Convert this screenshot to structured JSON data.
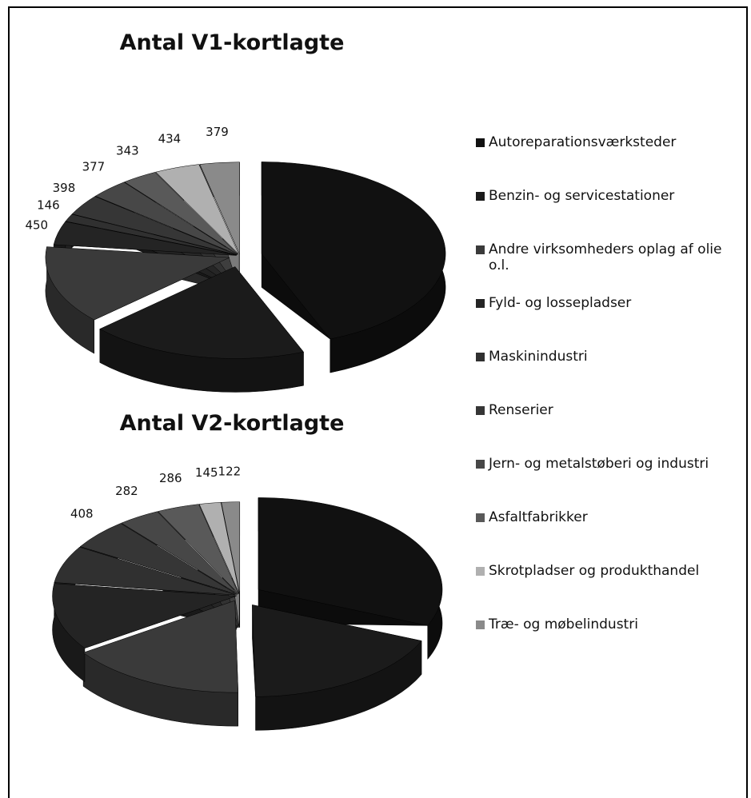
{
  "chart_data": [
    {
      "type": "pie",
      "title": "Antal V1-kortlagte",
      "values": [
        4800,
        2100,
        1500,
        450,
        146,
        398,
        377,
        343,
        434,
        379
      ],
      "value_labels": [
        null,
        null,
        null,
        "450",
        "146",
        "398",
        "377",
        "343",
        "434",
        "379"
      ]
    },
    {
      "type": "pie",
      "title": "Antal V2-kortlagte",
      "values": [
        2400,
        1400,
        1200,
        900,
        500,
        408,
        282,
        286,
        145,
        122
      ],
      "value_labels": [
        null,
        null,
        null,
        null,
        null,
        "408",
        "282",
        "286",
        "145",
        "122"
      ]
    }
  ],
  "legend": {
    "labels": [
      "Autoreparationsværksteder",
      "Benzin- og servicestationer",
      "Andre virksomheders oplag af olie o.l.",
      "Fyld- og lossepladser",
      "Maskinindustri",
      "Renserier",
      "Jern- og metalstøberi og industri",
      "Asfaltfabrikker",
      "Skrotpladser og produkthandel",
      "Træ- og møbelindustri"
    ],
    "colors": [
      "#111111",
      "#1b1b1b",
      "#3a3a3a",
      "#242424",
      "#303030",
      "#363636",
      "#474747",
      "#595959",
      "#b0b0b0",
      "#8a8a8a"
    ]
  }
}
